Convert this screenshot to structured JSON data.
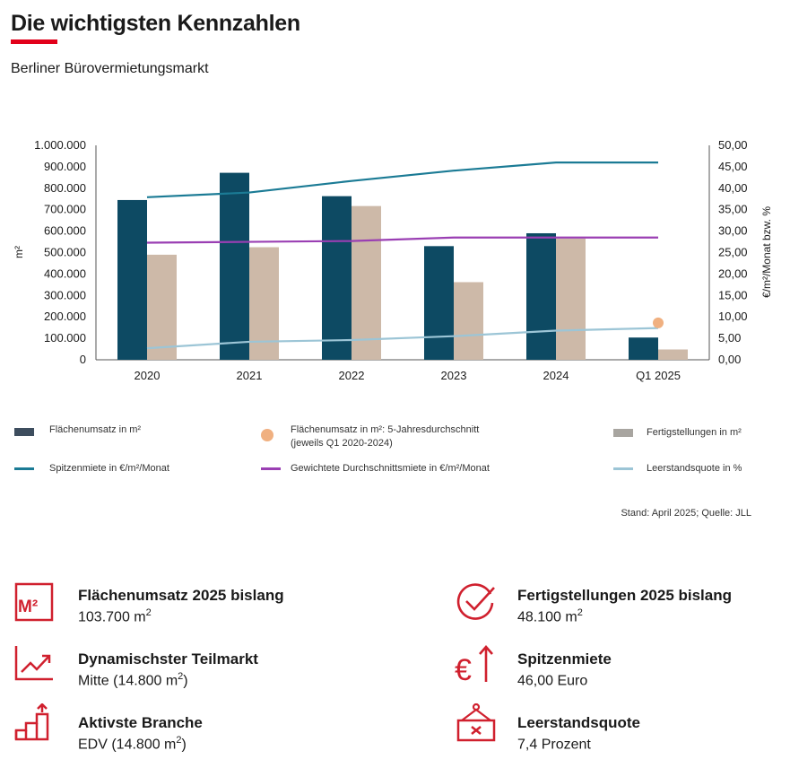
{
  "header": {
    "title": "Die wichtigsten Kennzahlen",
    "subtitle": "Berliner Bürovermietungsmarkt"
  },
  "chart_data": {
    "type": "bar",
    "categories": [
      "2020",
      "2021",
      "2022",
      "2023",
      "2024",
      "Q1 2025"
    ],
    "ylabel_left": "m²",
    "ylabel_right": "€/m²/Monat bzw. %",
    "ylim_left": [
      0,
      1000000
    ],
    "ylim_right": [
      0,
      50
    ],
    "yticks_left": [
      "0",
      "100.000",
      "200.000",
      "300.000",
      "400.000",
      "500.000",
      "600.000",
      "700.000",
      "800.000",
      "900.000",
      "1.000.000"
    ],
    "yticks_right": [
      "0,00",
      "5,00",
      "10,00",
      "15,00",
      "20,00",
      "25,00",
      "30,00",
      "35,00",
      "40,00",
      "45,00",
      "50,00"
    ],
    "series": [
      {
        "name": "Flächenumsatz in m²",
        "kind": "bar",
        "axis": "left",
        "color": "#0d4a63",
        "values": [
          745000,
          872000,
          763000,
          530000,
          590000,
          103700
        ]
      },
      {
        "name": "Fertigstellungen  in m²",
        "kind": "bar",
        "axis": "left",
        "color": "#cdb9a8",
        "values": [
          490000,
          525000,
          717000,
          362000,
          565000,
          48100
        ]
      },
      {
        "name": "Spitzenmiete in €/m²/Monat",
        "kind": "line",
        "axis": "right",
        "color": "#1b7b95",
        "values": [
          37.9,
          39.0,
          41.7,
          44.1,
          46.0,
          46.0
        ]
      },
      {
        "name": "Gewichtete Durchschnittsmiete in €/m²/Monat",
        "kind": "line",
        "axis": "right",
        "color": "#9a3fb3",
        "values": [
          27.3,
          27.5,
          27.7,
          28.5,
          28.5,
          28.5
        ]
      },
      {
        "name": "Leerstandsquote  in %",
        "kind": "line",
        "axis": "right",
        "color": "#9cc5d6",
        "values": [
          2.7,
          4.2,
          4.6,
          5.5,
          6.8,
          7.4
        ]
      },
      {
        "name": "Flächenumsatz in m²: 5-Jahresdurchschnitt (jeweils Q1 2020-2024)",
        "kind": "point",
        "axis": "left",
        "color": "#f0b080",
        "category": "Q1 2025",
        "value": 172000
      }
    ],
    "grid": false,
    "legend_position": "bottom"
  },
  "legend": {
    "flaechenumsatz": "Flächenumsatz in m²",
    "durchschnitt_line1": "Flächenumsatz in m²: 5-Jahresdurchschnitt",
    "durchschnitt_line2": "(jeweils Q1 2020-2024)",
    "fertigstellungen": "Fertigstellungen  in m²",
    "spitzenmiete": "Spitzenmiete in €/m²/Monat",
    "durchschnittsmiete": "Gewichtete Durchschnittsmiete in €/m²/Monat",
    "leerstand": "Leerstandsquote  in %"
  },
  "source": "Stand: April 2025; Quelle: JLL",
  "kpis": [
    {
      "icon": "m2-icon",
      "title": "Flächenumsatz 2025 bislang",
      "value": "103.700 m",
      "sup": "2",
      "suffix": ""
    },
    {
      "icon": "checkmark-circle-icon",
      "title": "Fertigstellungen 2025 bislang",
      "value": "48.100 m",
      "sup": "2",
      "suffix": ""
    },
    {
      "icon": "trend-chart-icon",
      "title": "Dynamischster Teilmarkt",
      "value": "Mitte (14.800 m",
      "sup": "2",
      "suffix": ")"
    },
    {
      "icon": "euro-up-icon",
      "title": "Spitzenmiete",
      "value": "46,00 Euro",
      "sup": "",
      "suffix": ""
    },
    {
      "icon": "growth-stairs-icon",
      "title": "Aktivste Branche",
      "value": "EDV (14.800 m",
      "sup": "2",
      "suffix": ")"
    },
    {
      "icon": "vacant-sign-icon",
      "title": "Leerstandsquote",
      "value": "7,4 Prozent",
      "sup": "",
      "suffix": ""
    }
  ],
  "colors": {
    "accent": "#e2001a",
    "icon_red": "#d0202e"
  }
}
